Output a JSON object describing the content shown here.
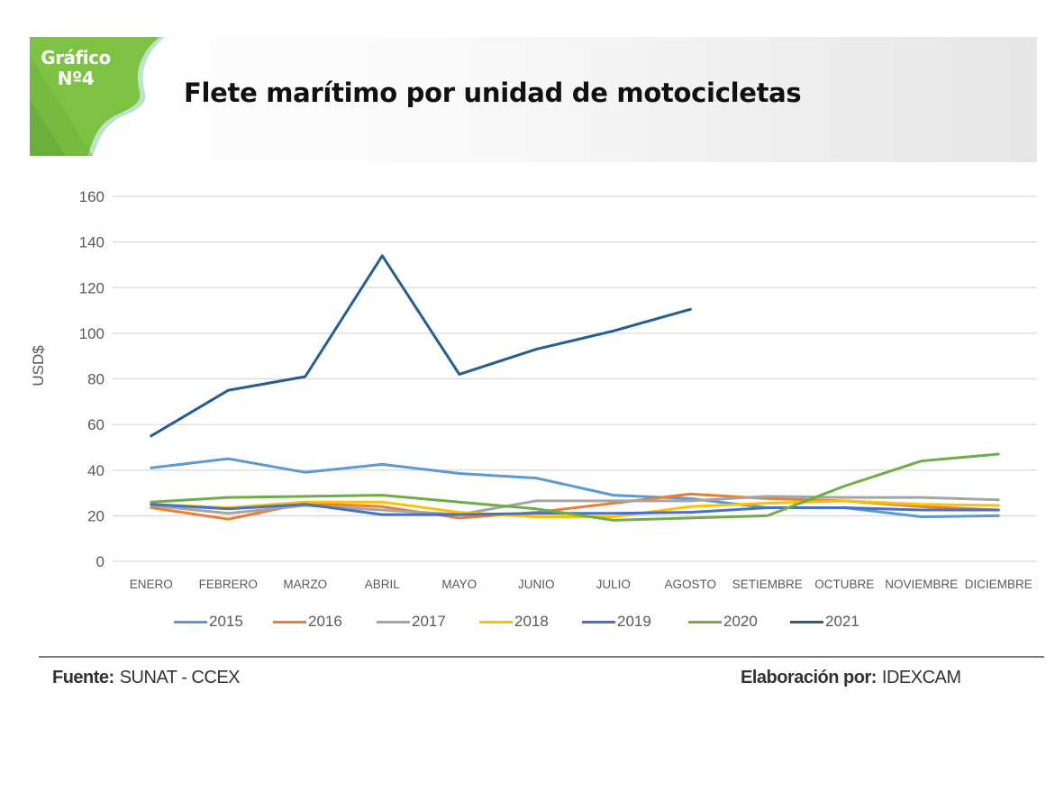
{
  "badge": {
    "line1": "Gráfico",
    "line2": "Nº4"
  },
  "header": {
    "title": "Flete marítimo por unidad de motocicletas"
  },
  "colors": {
    "badge_green": "#7dc242",
    "grid": "#d9d9d9",
    "axis_text": "#595959"
  },
  "chart_data": {
    "type": "line",
    "title": "Flete marítimo por unidad de motocicletas",
    "xlabel": "",
    "ylabel": "USD$",
    "ylim": [
      0,
      160
    ],
    "yticks": [
      0,
      20,
      40,
      60,
      80,
      100,
      120,
      140,
      160
    ],
    "grid": true,
    "legend_position": "bottom",
    "categories": [
      "ENERO",
      "FEBRERO",
      "MARZO",
      "ABRIL",
      "MAYO",
      "JUNIO",
      "JULIO",
      "AGOSTO",
      "SETIEMBRE",
      "OCTUBRE",
      "NOVIEMBRE",
      "DICIEMBRE"
    ],
    "series": [
      {
        "name": "2015",
        "color": "#5b9bd5",
        "values": [
          41,
          45,
          39,
          42.5,
          38.5,
          36.5,
          29,
          27.5,
          23.5,
          23.5,
          19.5,
          20
        ]
      },
      {
        "name": "2016",
        "color": "#ed7d31",
        "values": [
          23.5,
          18.5,
          25.5,
          24,
          19,
          21.5,
          25.5,
          29.5,
          27.5,
          26.5,
          24,
          22.5
        ]
      },
      {
        "name": "2017",
        "color": "#a5a5a5",
        "values": [
          24.5,
          21,
          24.5,
          22.5,
          20.5,
          26.5,
          26.5,
          26.5,
          28.5,
          28,
          28,
          27
        ]
      },
      {
        "name": "2018",
        "color": "#ffc000",
        "values": [
          25,
          23.5,
          26,
          26,
          21.5,
          19.5,
          19.5,
          24,
          25.5,
          26.5,
          25,
          24.5
        ]
      },
      {
        "name": "2019",
        "color": "#4472c4",
        "values": [
          25,
          23,
          25,
          20.5,
          20.5,
          21,
          21,
          21.5,
          23.5,
          23.5,
          22.5,
          22.5
        ]
      },
      {
        "name": "2020",
        "color": "#70ad47",
        "values": [
          26,
          28,
          28.5,
          29,
          26,
          23,
          18,
          19,
          20,
          33,
          44,
          47
        ]
      },
      {
        "name": "2021",
        "color": "#255e91",
        "values": [
          55,
          75,
          81,
          134,
          82,
          93,
          101,
          110.5,
          null,
          null,
          null,
          null
        ]
      }
    ]
  },
  "footer": {
    "source_key": "Fuente:",
    "source_value": "SUNAT - CCEX",
    "author_key": "Elaboración por:",
    "author_value": "IDEXCAM"
  }
}
